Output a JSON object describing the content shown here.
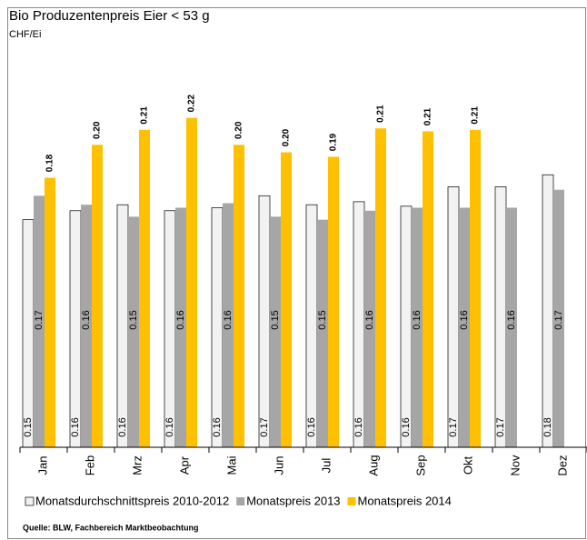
{
  "chart_data": {
    "type": "bar",
    "title": "Bio Produzentenpreis Eier < 53 g",
    "subtitle": "CHF/Ei",
    "source": "Quelle: BLW, Fachbereich Marktbeobachtung",
    "categories": [
      "Jan",
      "Feb",
      "Mrz",
      "Apr",
      "Mai",
      "Jun",
      "Jul",
      "Aug",
      "Sep",
      "Okt",
      "Nov",
      "Dez"
    ],
    "ylim": [
      0,
      0.26
    ],
    "legend": "bottom",
    "series": [
      {
        "name": "Monatsdurchschnittspreis 2010-2012",
        "color": "#f2f2f2",
        "values": [
          0.152,
          0.158,
          0.162,
          0.158,
          0.16,
          0.168,
          0.162,
          0.164,
          0.161,
          0.174,
          0.174,
          0.182
        ],
        "value_labels": [
          "0.15",
          "0.16",
          "0.16",
          "0.16",
          "0.16",
          "0.17",
          "0.16",
          "0.16",
          "0.16",
          "0.17",
          "0.17",
          "0.18"
        ]
      },
      {
        "name": "Monatspreis 2013",
        "color": "#a6a6a6",
        "values": [
          0.168,
          0.162,
          0.154,
          0.16,
          0.163,
          0.154,
          0.152,
          0.158,
          0.16,
          0.16,
          0.16,
          0.172
        ],
        "value_labels": [
          "0.17",
          "0.16",
          "0.15",
          "0.16",
          "0.16",
          "0.15",
          "0.15",
          "0.16",
          "0.16",
          "0.16",
          "0.16",
          "0.17"
        ]
      },
      {
        "name": "Monatspreis 2014",
        "color": "#ffc000",
        "values": [
          0.18,
          0.202,
          0.212,
          0.22,
          0.202,
          0.197,
          0.194,
          0.213,
          0.211,
          0.212,
          null,
          null
        ],
        "value_labels": [
          "0.18",
          "0.20",
          "0.21",
          "0.22",
          "0.20",
          "0.20",
          "0.19",
          "0.21",
          "0.21",
          "0.21",
          null,
          null
        ]
      }
    ]
  }
}
